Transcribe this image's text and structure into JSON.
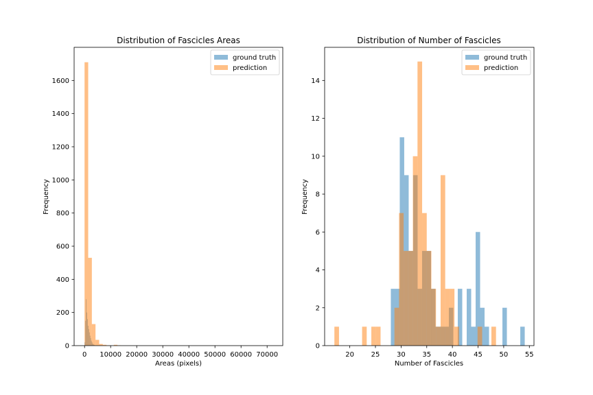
{
  "figure": {
    "colors": {
      "ground_truth": "#1f77b4",
      "prediction": "#ff7f0e",
      "alpha": 0.5
    }
  },
  "chart_data": [
    {
      "type": "histogram",
      "title": "Distribution of Fascicles Areas",
      "xlabel": "Areas (pixels)",
      "ylabel": "Frequency",
      "xlim": [
        -4000,
        76000
      ],
      "ylim": [
        0,
        1800
      ],
      "xticks": [
        0,
        10000,
        20000,
        30000,
        40000,
        50000,
        60000,
        70000
      ],
      "yticks": [
        0,
        200,
        400,
        600,
        800,
        1000,
        1200,
        1400,
        1600
      ],
      "legend": {
        "position": "top-right",
        "entries": [
          "ground truth",
          "prediction"
        ]
      },
      "series": [
        {
          "name": "ground truth",
          "color": "#1f77b4",
          "bins": [
            [
              0,
              250,
              20
            ],
            [
              250,
              500,
              150
            ],
            [
              500,
              750,
              280
            ],
            [
              750,
              1000,
              200
            ],
            [
              1000,
              1250,
              160
            ],
            [
              1250,
              1500,
              120
            ],
            [
              1500,
              1750,
              100
            ],
            [
              1750,
              2000,
              80
            ],
            [
              2000,
              2250,
              60
            ],
            [
              2250,
              2500,
              45
            ],
            [
              2500,
              2750,
              30
            ],
            [
              2750,
              3000,
              20
            ],
            [
              3000,
              3250,
              12
            ],
            [
              3250,
              3500,
              8
            ],
            [
              3500,
              3750,
              5
            ],
            [
              3750,
              4000,
              3
            ]
          ]
        },
        {
          "name": "prediction",
          "color": "#ff7f0e",
          "bins": [
            [
              0,
              1400,
              1710
            ],
            [
              1400,
              2800,
              530
            ],
            [
              2800,
              4200,
              130
            ],
            [
              4200,
              5600,
              35
            ],
            [
              5600,
              7000,
              10
            ],
            [
              7000,
              8400,
              5
            ],
            [
              8400,
              9800,
              2
            ],
            [
              11200,
              12600,
              5
            ],
            [
              12600,
              14000,
              2
            ]
          ]
        }
      ]
    },
    {
      "type": "histogram",
      "title": "Distribution of Number of Fascicles",
      "xlabel": "Number of Fascicles",
      "ylabel": "Frequency",
      "xlim": [
        15.1,
        55.9
      ],
      "ylim": [
        0,
        15.75
      ],
      "xticks": [
        20,
        25,
        30,
        35,
        40,
        45,
        50,
        55
      ],
      "yticks": [
        0,
        2,
        4,
        6,
        8,
        10,
        12,
        14
      ],
      "legend": {
        "position": "top-right",
        "entries": [
          "ground truth",
          "prediction"
        ]
      },
      "series": [
        {
          "name": "ground truth",
          "color": "#1f77b4",
          "bins": [
            [
              28.0,
              28.87,
              3
            ],
            [
              28.87,
              29.74,
              3
            ],
            [
              29.74,
              30.61,
              11
            ],
            [
              30.61,
              31.48,
              9
            ],
            [
              31.48,
              32.35,
              5
            ],
            [
              32.35,
              33.22,
              9
            ],
            [
              33.22,
              34.09,
              3
            ],
            [
              34.09,
              34.96,
              5
            ],
            [
              34.96,
              35.83,
              5
            ],
            [
              35.83,
              36.7,
              3
            ],
            [
              36.7,
              37.57,
              1
            ],
            [
              37.57,
              38.44,
              1
            ],
            [
              38.44,
              39.31,
              1
            ],
            [
              39.31,
              40.18,
              2
            ],
            [
              41.05,
              41.92,
              3
            ],
            [
              42.79,
              43.66,
              3
            ],
            [
              43.66,
              44.53,
              1
            ],
            [
              44.53,
              45.4,
              6
            ],
            [
              45.4,
              46.27,
              2
            ],
            [
              46.27,
              47.14,
              1
            ],
            [
              49.75,
              50.62,
              2
            ],
            [
              53.23,
              54.1,
              1
            ]
          ]
        },
        {
          "name": "prediction",
          "color": "#ff7f0e",
          "bins": [
            [
              17.0,
              17.9,
              1
            ],
            [
              22.4,
              23.3,
              1
            ],
            [
              24.2,
              25.1,
              1
            ],
            [
              25.1,
              26.0,
              1
            ],
            [
              26.9,
              27.8,
              0
            ],
            [
              28.7,
              29.6,
              2
            ],
            [
              29.6,
              30.5,
              7
            ],
            [
              30.5,
              31.4,
              5
            ],
            [
              31.4,
              32.3,
              5
            ],
            [
              32.3,
              33.2,
              10
            ],
            [
              33.2,
              34.1,
              15
            ],
            [
              34.1,
              35.0,
              7
            ],
            [
              35.0,
              35.9,
              5
            ],
            [
              35.9,
              36.8,
              3
            ],
            [
              36.8,
              37.7,
              1
            ],
            [
              37.7,
              38.6,
              9
            ],
            [
              38.6,
              39.5,
              3
            ],
            [
              39.5,
              40.4,
              3
            ],
            [
              40.4,
              41.3,
              1
            ],
            [
              44.9,
              45.8,
              1
            ],
            [
              47.6,
              48.5,
              1
            ]
          ]
        }
      ]
    }
  ]
}
